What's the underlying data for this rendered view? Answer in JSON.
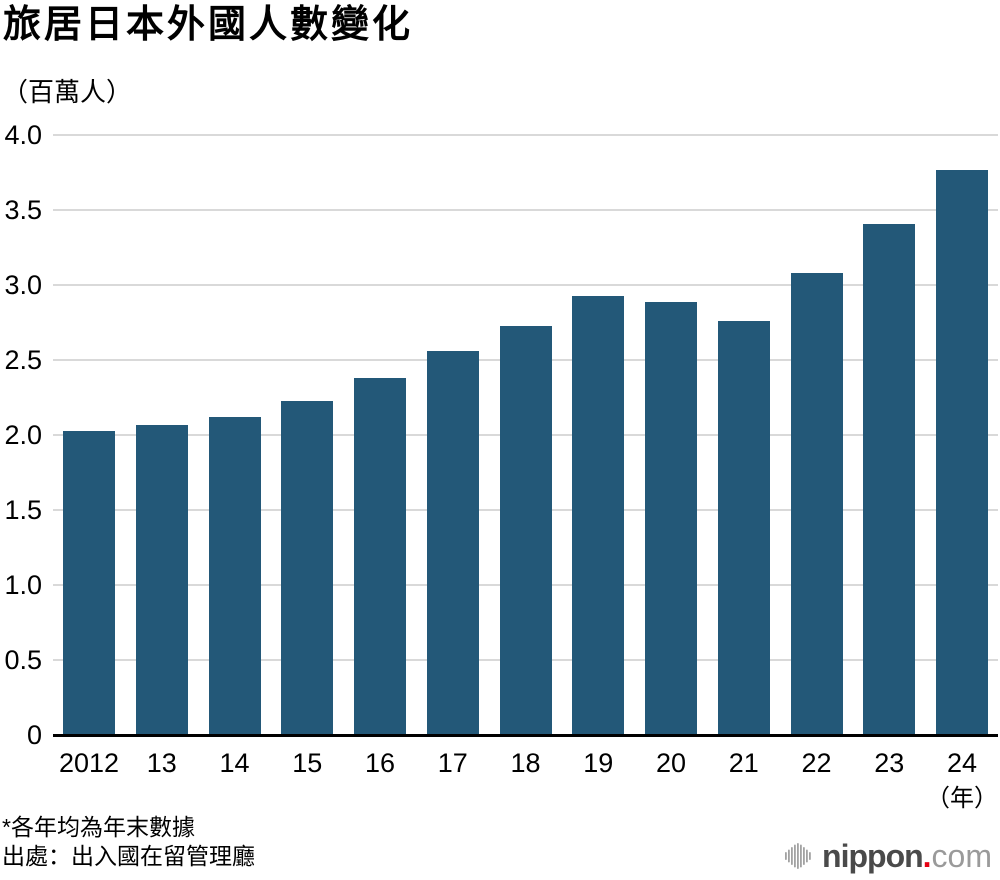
{
  "header": {
    "title": "旅居日本外國人數變化",
    "unit_label": "（百萬人）"
  },
  "chart_data": {
    "type": "bar",
    "title": "旅居日本外國人數變化",
    "categories": [
      "2012",
      "13",
      "14",
      "15",
      "16",
      "17",
      "18",
      "19",
      "20",
      "21",
      "22",
      "23",
      "24"
    ],
    "values": [
      2.03,
      2.07,
      2.12,
      2.23,
      2.38,
      2.56,
      2.73,
      2.93,
      2.89,
      2.76,
      3.08,
      3.41,
      3.77
    ],
    "xlabel": "（年）",
    "ylabel": "（百萬人）",
    "ylim": [
      0,
      4.0
    ],
    "ytick_step": 0.5,
    "yticks": [
      "0",
      "0.5",
      "1.0",
      "1.5",
      "2.0",
      "2.5",
      "3.0",
      "3.5",
      "4.0"
    ],
    "grid": true,
    "legend": "none",
    "bar_color": "#235878",
    "grid_color": "#d9d9d9",
    "axis_color": "#000000"
  },
  "footer": {
    "note": "*各年均為年末數據",
    "source": "出處：出入國在留管理廳"
  },
  "logo": {
    "name": "nippon",
    "dot": ".",
    "suffix": "com",
    "wordmark_color": "#4a4a4a",
    "dot_color": "#e60012",
    "suffix_color": "#9a9a9a",
    "icon_color": "#a2a2a2"
  }
}
